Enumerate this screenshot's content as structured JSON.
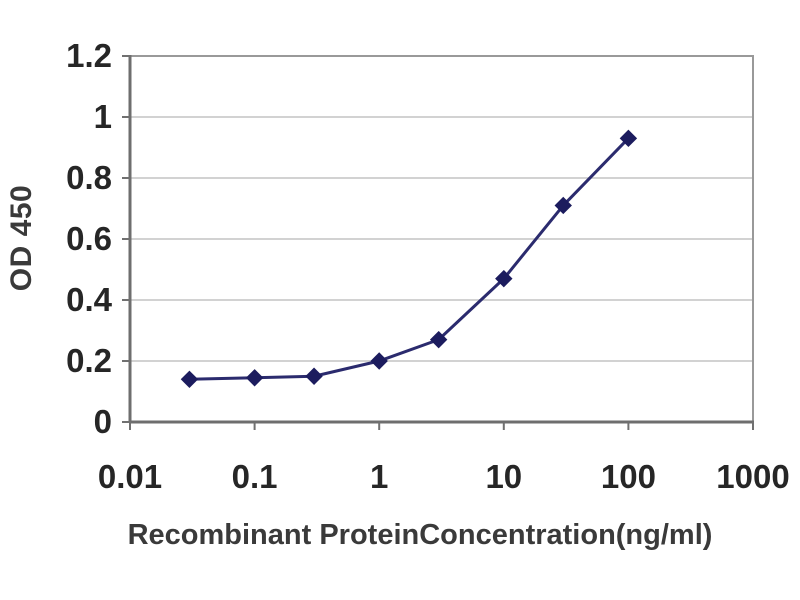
{
  "chart_data": {
    "type": "line",
    "title": "",
    "xlabel": "Recombinant ProteinConcentration(ng/ml)",
    "ylabel": "OD 450",
    "x_scale": "log",
    "xlim": [
      0.01,
      1000
    ],
    "ylim": [
      0,
      1.2
    ],
    "x_ticks": {
      "values": [
        0.01,
        0.1,
        1,
        10,
        100,
        1000
      ],
      "labels": [
        "0.01",
        "0.1",
        "1",
        "10",
        "100",
        "1000"
      ]
    },
    "y_ticks": {
      "values": [
        0,
        0.2,
        0.4,
        0.6,
        0.8,
        1,
        1.2
      ],
      "labels": [
        "0",
        "0.2",
        "0.4",
        "0.6",
        "0.8",
        "1",
        "1.2"
      ]
    },
    "grid": "horizontal-only",
    "legend": "none",
    "series": [
      {
        "name": "OD 450",
        "marker": "diamond",
        "x": [
          0.03,
          0.1,
          0.3,
          1,
          3,
          10,
          30,
          100
        ],
        "y": [
          0.14,
          0.145,
          0.15,
          0.2,
          0.27,
          0.47,
          0.71,
          0.93
        ]
      }
    ]
  },
  "colors": {
    "background": "#ffffff",
    "line": "#2b2b6e",
    "marker": "#1c1c5e",
    "grid": "#c4c4c4",
    "plot_border": "#999999",
    "axis": "#6e6e6e",
    "tick": "#707070",
    "tick_text": "#262626",
    "title_text": "#3a3a3a"
  }
}
